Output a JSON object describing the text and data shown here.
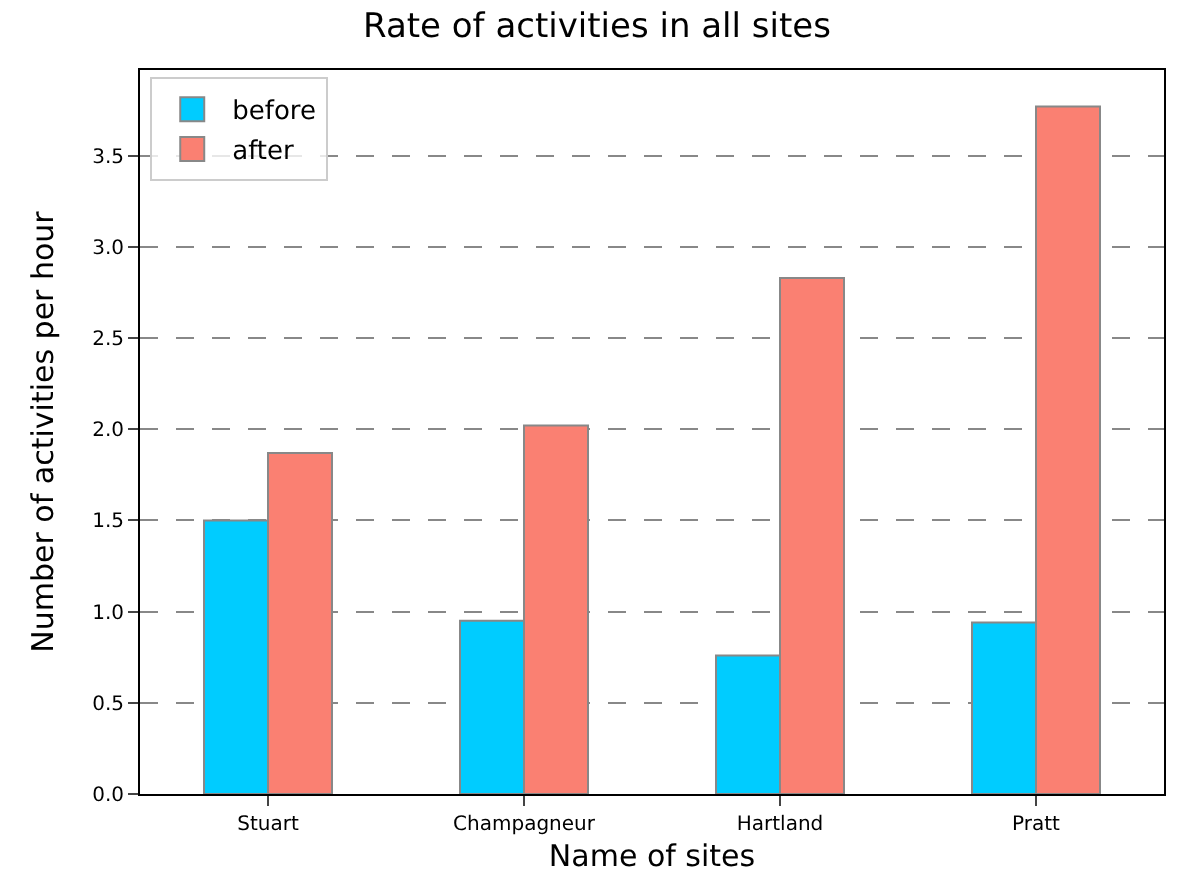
{
  "chart_data": {
    "type": "bar",
    "title": "Rate of activities in all sites",
    "xlabel": "Name of sites",
    "ylabel": "Number of activities per hour",
    "categories": [
      "Stuart",
      "Champagneur",
      "Hartland",
      "Pratt"
    ],
    "series": [
      {
        "name": "before",
        "color": "#00ccff",
        "values": [
          1.5,
          0.95,
          0.76,
          0.94
        ]
      },
      {
        "name": "after",
        "color": "#fa8072",
        "values": [
          1.87,
          2.02,
          2.83,
          3.77
        ]
      }
    ],
    "ylim": [
      0,
      3.97
    ],
    "yticks": [
      {
        "value": 0,
        "label": "0.0"
      },
      {
        "value": 0.5,
        "label": "0.5"
      },
      {
        "value": 1,
        "label": "1.0"
      },
      {
        "value": 1.5,
        "label": "1.5"
      },
      {
        "value": 2,
        "label": "2.0"
      },
      {
        "value": 2.5,
        "label": "2.5"
      },
      {
        "value": 3,
        "label": "3.0"
      },
      {
        "value": 3.5,
        "label": "3.5"
      }
    ],
    "grid": "y",
    "legend": "top left"
  }
}
